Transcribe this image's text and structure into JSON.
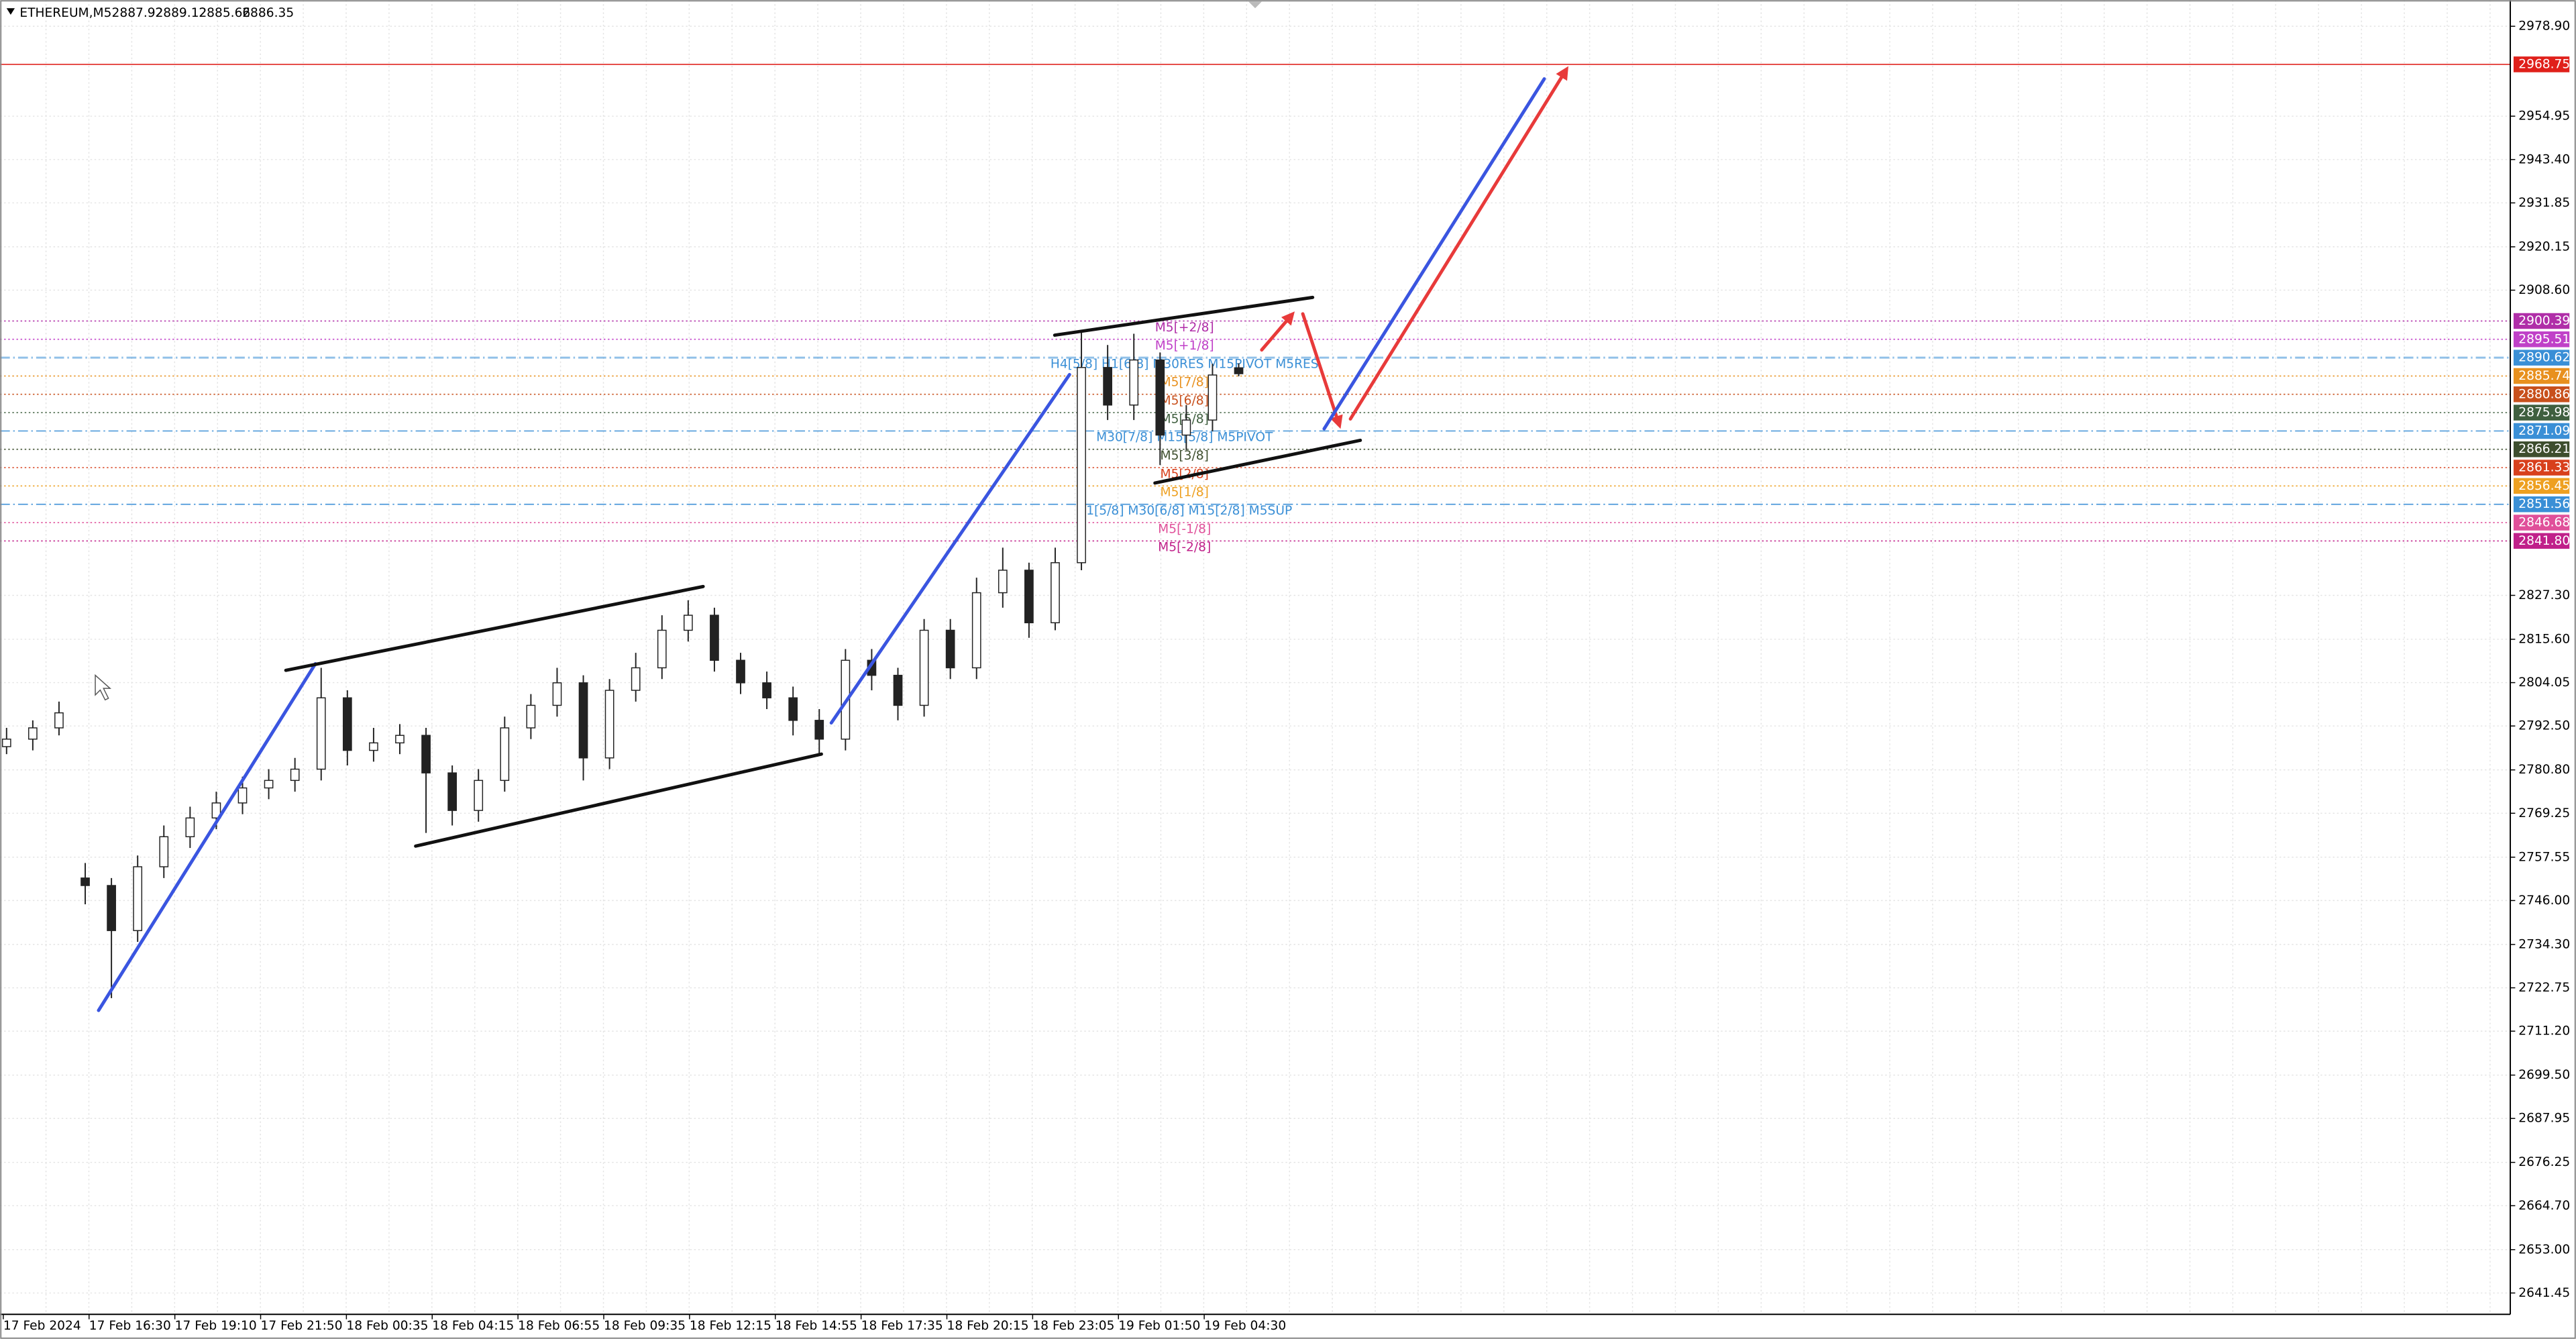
{
  "chart_data": {
    "type": "candlestick",
    "title": "ETHEREUM,M5",
    "quote": [
      2887.92,
      2889.12,
      2885.66,
      2886.35
    ],
    "candles": {
      "open": [
        2787,
        2789,
        2792,
        2752,
        2750,
        2738,
        2755,
        2763,
        2768,
        2772,
        2776,
        2778,
        2781,
        2800,
        2786,
        2788,
        2790,
        2780,
        2770,
        2778,
        2792,
        2798,
        2804,
        2784,
        2802,
        2808,
        2818,
        2822,
        2810,
        2804,
        2800,
        2794,
        2789,
        2810,
        2806,
        2798,
        2818,
        2808,
        2828,
        2834,
        2820,
        2836,
        2888,
        2878,
        2890,
        2870,
        2874,
        2887.92
      ],
      "high": [
        2792,
        2794,
        2799,
        2756,
        2752,
        2758,
        2766,
        2771,
        2775,
        2779,
        2781,
        2784,
        2808,
        2802,
        2792,
        2793,
        2792,
        2782,
        2781,
        2795,
        2801,
        2808,
        2806,
        2805,
        2812,
        2822,
        2826,
        2824,
        2812,
        2807,
        2803,
        2797,
        2813,
        2813,
        2808,
        2821,
        2821,
        2832,
        2840,
        2836,
        2840,
        2898,
        2894,
        2897,
        2892,
        2878,
        2889,
        2889.12
      ],
      "low": [
        2785,
        2786,
        2790,
        2745,
        2720,
        2735,
        2752,
        2760,
        2765,
        2769,
        2773,
        2775,
        2778,
        2782,
        2783,
        2785,
        2764,
        2766,
        2767,
        2775,
        2789,
        2795,
        2778,
        2781,
        2799,
        2805,
        2815,
        2807,
        2801,
        2797,
        2790,
        2785,
        2786,
        2802,
        2794,
        2795,
        2805,
        2805,
        2824,
        2816,
        2818,
        2834,
        2874,
        2874,
        2862,
        2866,
        2871,
        2885.66
      ],
      "close": [
        2789,
        2792,
        2796,
        2750,
        2738,
        2755,
        2763,
        2768,
        2772,
        2776,
        2778,
        2781,
        2800,
        2786,
        2788,
        2790,
        2780,
        2770,
        2778,
        2792,
        2798,
        2804,
        2784,
        2802,
        2808,
        2818,
        2822,
        2810,
        2804,
        2800,
        2794,
        2789,
        2810,
        2806,
        2798,
        2818,
        2808,
        2828,
        2834,
        2820,
        2836,
        2888,
        2878,
        2890,
        2870,
        2874,
        2886,
        2886.35
      ]
    },
    "x_labels": [
      "17 Feb 2024",
      "17 Feb 16:30",
      "17 Feb 19:10",
      "17 Feb 21:50",
      "18 Feb 00:35",
      "18 Feb 04:15",
      "18 Feb 06:55",
      "18 Feb 09:35",
      "18 Feb 12:15",
      "18 Feb 14:55",
      "18 Feb 17:35",
      "18 Feb 20:15",
      "18 Feb 23:05",
      "19 Feb 01:50",
      "19 Feb 04:30"
    ],
    "ylim": [
      2635.76,
      2985.9
    ],
    "yticks": [
      {
        "value": 2978.9,
        "label": "2978.90"
      },
      2954.95,
      {
        "value": 2943.4,
        "label": "2943.40"
      },
      2931.85,
      2920.15,
      {
        "value": 2908.6,
        "label": "2908.60"
      },
      {
        "value": 2827.3,
        "label": "2827.30"
      },
      {
        "value": 2815.6,
        "label": "2815.60"
      },
      2804.05,
      {
        "value": 2792.5,
        "label": "2792.50"
      },
      {
        "value": 2780.8,
        "label": "2780.80"
      },
      2769.25,
      2757.55,
      {
        "value": 2746,
        "label": "2746.00"
      },
      {
        "value": 2734.3,
        "label": "2734.30"
      },
      2722.75,
      {
        "value": 2711.2,
        "label": "2711.20"
      },
      {
        "value": 2699.5,
        "label": "2699.50"
      },
      2687.95,
      2676.25,
      {
        "value": 2664.7,
        "label": "2664.70"
      },
      {
        "value": 2653,
        "label": "2653.00"
      },
      2641.45
    ],
    "grid": true,
    "levels": [
      {
        "value": 2968.75,
        "color": "#e0201a"
      },
      {
        "value": 2900.39,
        "color": "#b02ea8",
        "text": "M5[+2/8]"
      },
      {
        "value": 2895.51,
        "color": "#c040c8",
        "text": "M5[+1/8]"
      },
      {
        "value": 2890.62,
        "color": "#3a8fd6",
        "text": "H4[5/8] H1[6/8] M30RES M15PIVOT M5RES"
      },
      {
        "value": 2885.74,
        "color": "#e8901e",
        "text": "M5[7/8]"
      },
      {
        "value": 2880.86,
        "color": "#c8501c",
        "text": "M5[6/8]"
      },
      {
        "value": 2875.98,
        "color": "#3f5f3f",
        "text": "M5[5/8]"
      },
      {
        "value": 2871.09,
        "color": "#3a8fd6",
        "text": "M30[7/8] M15[5/8] M5PIVOT"
      },
      {
        "value": 2866.21,
        "color": "#3e4e2e",
        "text": "M5[3/8]"
      },
      {
        "value": 2861.33,
        "color": "#d8401c",
        "text": "M5[2/8]"
      },
      {
        "value": 2856.45,
        "color": "#eea020",
        "text": "M5[1/8]"
      },
      {
        "value": 2851.56,
        "color": "#3a8fd6",
        "text": "H1[5/8] M30[6/8] M15[2/8] M5SUP"
      },
      {
        "value": 2846.68,
        "color": "#e0509a",
        "text": "M5[-1/8]"
      },
      {
        "value": 2841.8,
        "label": "2841.80",
        "color": "#c0208a",
        "text": "M5[-2/8]"
      }
    ]
  }
}
